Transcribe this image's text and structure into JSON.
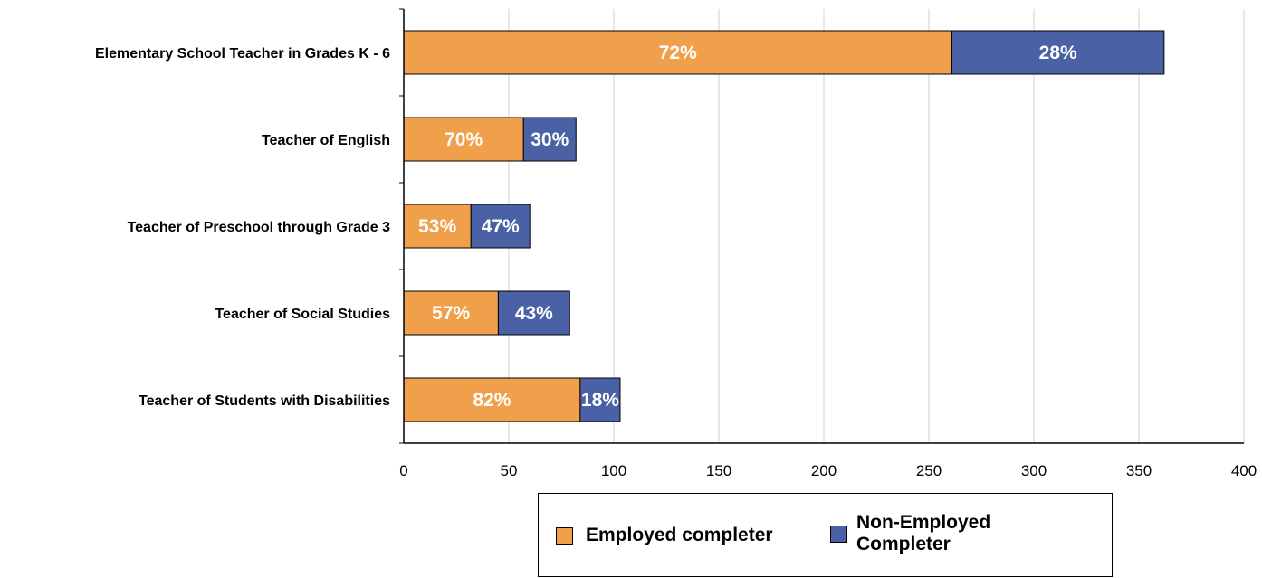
{
  "chart_data": {
    "type": "bar",
    "orientation": "horizontal",
    "stacked": true,
    "title": "",
    "xlabel": "",
    "ylabel": "",
    "categories": [
      "Elementary School Teacher in Grades K - 6",
      "Teacher of English",
      "Teacher of Preschool through Grade 3",
      "Teacher of Social Studies",
      "Teacher of Students with Disabilities"
    ],
    "series": [
      {
        "name": "Employed completer",
        "color": "#F0A04B",
        "values": [
          261,
          57,
          32,
          45,
          84
        ],
        "labels": [
          "72%",
          "70%",
          "53%",
          "57%",
          "82%"
        ]
      },
      {
        "name": "Non-Employed Completer",
        "color": "#4A62A5",
        "values": [
          101,
          25,
          28,
          34,
          19
        ],
        "labels": [
          "28%",
          "30%",
          "47%",
          "43%",
          "18%"
        ]
      }
    ],
    "xlim": [
      0,
      400
    ],
    "xticks": [
      "0",
      "50",
      "100",
      "150",
      "200",
      "250",
      "300",
      "350",
      "400"
    ],
    "grid": true,
    "legend_position": "bottom"
  }
}
